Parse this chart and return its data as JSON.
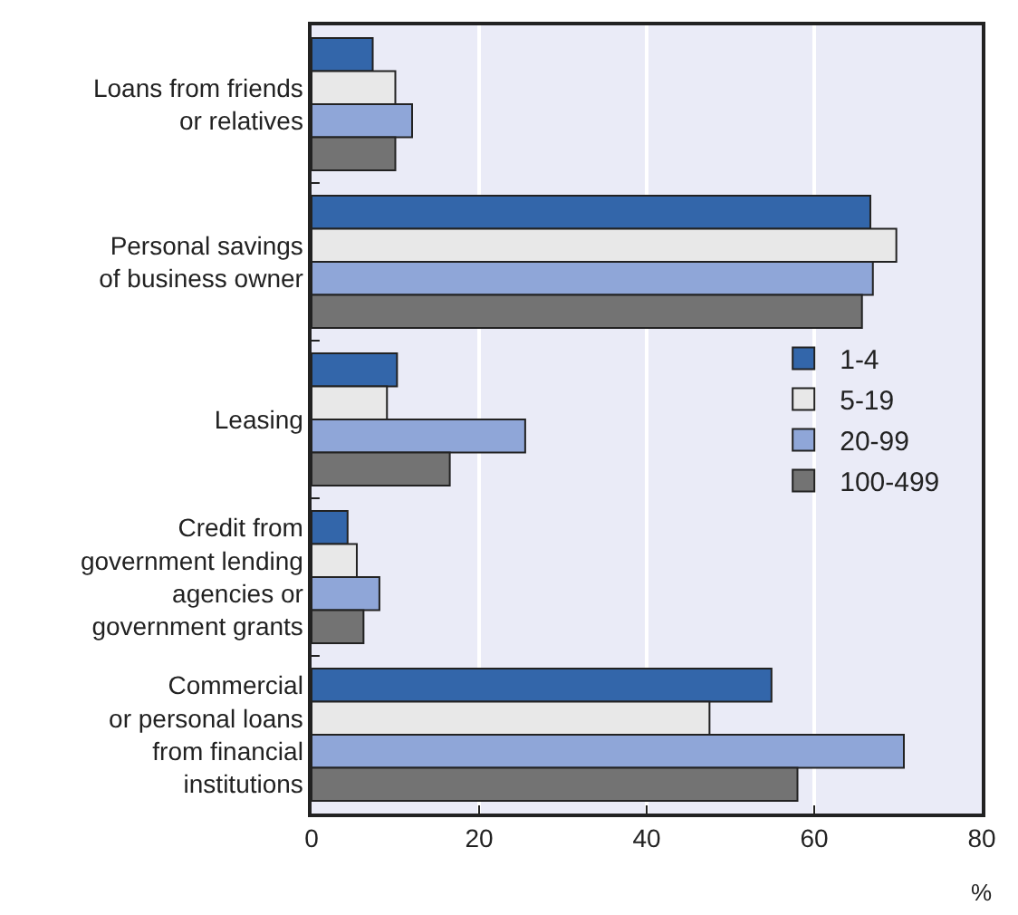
{
  "chart_data": {
    "type": "bar",
    "orientation": "horizontal",
    "xlabel": "%",
    "categories": [
      "Loans from friends\nor relatives",
      "Personal savings\nof business owner",
      "Leasing",
      "Credit from\ngovernment lending\nagencies or\ngovernment grants",
      "Commercial\nor personal loans\nfrom financial\ninstitutions"
    ],
    "series": [
      {
        "name": "1-4",
        "color": "#3366aa",
        "values": [
          7.3,
          66.7,
          10.2,
          4.3,
          54.9
        ]
      },
      {
        "name": "5-19",
        "color": "#e8e8e8",
        "values": [
          10,
          69.8,
          9,
          5.4,
          47.5
        ]
      },
      {
        "name": "20-99",
        "color": "#8fa6d8",
        "values": [
          12,
          67,
          25.5,
          8.1,
          70.7
        ]
      },
      {
        "name": "100-499",
        "color": "#737373",
        "values": [
          10,
          65.7,
          16.5,
          6.2,
          58
        ]
      }
    ],
    "xlim": [
      0,
      80
    ],
    "xticks": [
      0,
      20,
      40,
      60,
      80
    ],
    "grid": "x",
    "legend": "right"
  }
}
